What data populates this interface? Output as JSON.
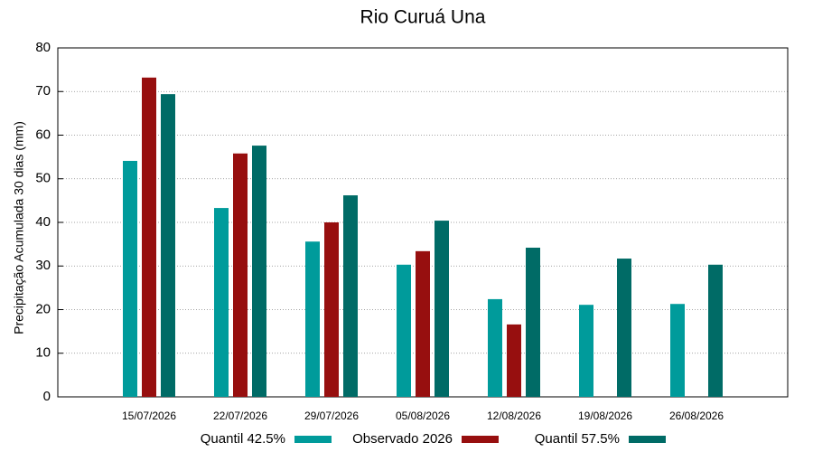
{
  "chart_data": {
    "type": "bar",
    "title": "Rio Curuá Una",
    "y_label": "Precipitação Acumulada 30 dias (mm)",
    "categories": [
      "15/07/2026",
      "22/07/2026",
      "29/07/2026",
      "05/08/2026",
      "12/08/2026",
      "19/08/2026",
      "26/08/2026"
    ],
    "series": [
      {
        "name": "Quantil 42.5%",
        "color": "#009b9b",
        "values": [
          54.1,
          43.3,
          35.6,
          30.3,
          22.4,
          21.1,
          21.3
        ]
      },
      {
        "name": "Observado 2026",
        "color": "#970f0f",
        "values": [
          73.2,
          55.8,
          40.0,
          33.4,
          16.6,
          null,
          null
        ]
      },
      {
        "name": "Quantil 57.5%",
        "color": "#006b66",
        "values": [
          69.4,
          57.6,
          46.2,
          40.4,
          34.2,
          31.7,
          30.3
        ]
      }
    ],
    "ylim": [
      0,
      80
    ],
    "yticks": [
      0,
      10,
      20,
      30,
      40,
      50,
      60,
      70,
      80
    ],
    "grid": true,
    "legend": "bottom"
  }
}
